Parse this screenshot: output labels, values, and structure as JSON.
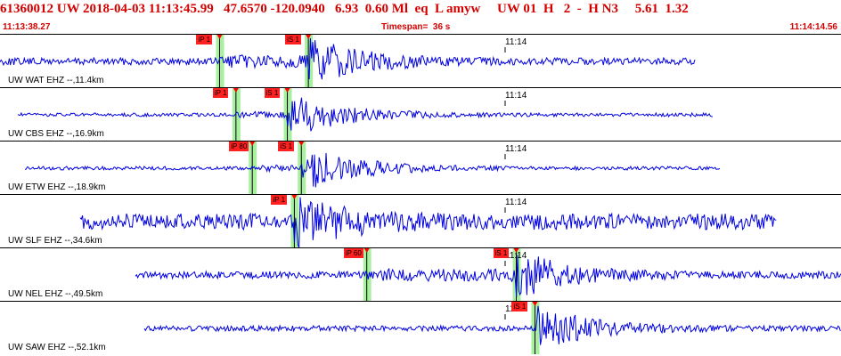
{
  "header": {
    "title": "61360012 UW 2018-04-03 11:13:45.99   47.6570 -120.0940   6.93  0.60 Ml  eq  L amyw     UW 01  H   2  -  H N3     5.61  1.32",
    "start_time": "11:13:38.27",
    "timespan": "Timespan=  36 s",
    "end_time": "11:14:14.56"
  },
  "time_mark_label": "11:14",
  "colors": {
    "waveform": "#0000e0",
    "pick_flag": "#ff2020",
    "pick_window": "#a8f0a0",
    "header_text": "#d40000"
  },
  "traces": [
    {
      "station": "UW WAT EHZ --,11.4km",
      "picks": [
        {
          "label": "iP 1",
          "time_s": 9.4
        },
        {
          "label": "iS 1",
          "time_s": 13.2
        }
      ]
    },
    {
      "station": "UW CBS EHZ --,16.9km",
      "picks": [
        {
          "label": "iP 1",
          "time_s": 10.1
        },
        {
          "label": "iS 1",
          "time_s": 12.3
        }
      ]
    },
    {
      "station": "UW ETW EHZ --,18.9km",
      "picks": [
        {
          "label": "iP 80",
          "time_s": 10.8
        },
        {
          "label": "iS 1",
          "time_s": 12.9
        }
      ]
    },
    {
      "station": "UW SLF EHZ --,34.6km",
      "picks": [
        {
          "label": "iP 1",
          "time_s": 12.6
        }
      ]
    },
    {
      "station": "UW NEL EHZ --,49.5km",
      "picks": [
        {
          "label": "iP 60",
          "time_s": 15.7
        },
        {
          "label": "iS 1",
          "time_s": 22.1
        }
      ]
    },
    {
      "station": "UW SAW EHZ --,52.1km",
      "picks": [
        {
          "label": "iS 1",
          "time_s": 22.9
        }
      ]
    }
  ]
}
